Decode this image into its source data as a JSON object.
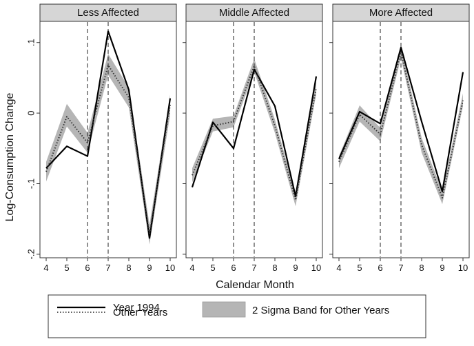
{
  "chart_data": {
    "type": "line",
    "ylabel": "Log-Consumption Change",
    "xlabel": "Calendar Month",
    "x": [
      4,
      5,
      6,
      7,
      8,
      9,
      10
    ],
    "xlim": [
      3.7,
      10.3
    ],
    "ylim": [
      -0.205,
      0.13
    ],
    "yticks": [
      0.1,
      0,
      -0.1,
      -0.2
    ],
    "ytick_labels": [
      ".1",
      "0",
      "-.1",
      "-.2"
    ],
    "vlines": [
      6,
      7
    ],
    "legend": {
      "entries": [
        "Year 1994",
        "2 Sigma Band for Other Years",
        "Other Years"
      ],
      "position": "bottom"
    },
    "panels": [
      {
        "title": "Less Affected",
        "series": [
          {
            "name": "Year 1994",
            "values": [
              -0.078,
              -0.047,
              -0.061,
              0.116,
              0.033,
              -0.177,
              0.021
            ]
          },
          {
            "name": "Other Years",
            "values": [
              -0.083,
              -0.005,
              -0.042,
              0.068,
              0.022,
              -0.172,
              0.012
            ]
          }
        ],
        "band": {
          "name": "2 Sigma Band for Other Years",
          "lower": [
            -0.097,
            -0.019,
            -0.056,
            0.054,
            0.008,
            -0.186,
            -0.002
          ],
          "upper": [
            -0.069,
            0.013,
            -0.028,
            0.084,
            0.036,
            -0.158,
            0.026
          ]
        }
      },
      {
        "title": "Middle Affected",
        "series": [
          {
            "name": "Year 1994",
            "values": [
              -0.105,
              -0.013,
              -0.05,
              0.062,
              0.01,
              -0.118,
              0.052
            ]
          },
          {
            "name": "Other Years",
            "values": [
              -0.088,
              -0.018,
              -0.012,
              0.067,
              -0.018,
              -0.123,
              0.036
            ]
          }
        ],
        "band": {
          "name": "2 Sigma Band for Other Years",
          "lower": [
            -0.098,
            -0.026,
            -0.02,
            0.058,
            -0.028,
            -0.132,
            0.027
          ],
          "upper": [
            -0.078,
            -0.008,
            -0.004,
            0.077,
            -0.009,
            -0.114,
            0.045
          ]
        }
      },
      {
        "title": "More Affected",
        "series": [
          {
            "name": "Year 1994",
            "values": [
              -0.065,
              0.002,
              -0.015,
              0.093,
              -0.012,
              -0.111,
              0.058
            ]
          },
          {
            "name": "Other Years",
            "values": [
              -0.069,
              -0.002,
              -0.03,
              0.087,
              -0.045,
              -0.12,
              0.018
            ]
          }
        ],
        "band": {
          "name": "2 Sigma Band for Other Years",
          "lower": [
            -0.078,
            -0.012,
            -0.04,
            0.078,
            -0.056,
            -0.129,
            0.01
          ],
          "upper": [
            -0.061,
            0.011,
            -0.021,
            0.096,
            -0.035,
            -0.111,
            0.028
          ]
        }
      }
    ]
  }
}
